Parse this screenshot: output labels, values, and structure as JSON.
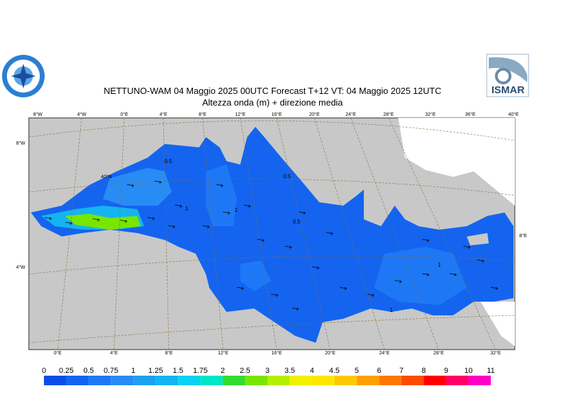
{
  "header": {
    "title": "NETTUNO-WAM  04   Maggio  2025 00UTC Forecast T+12 VT: 04   Maggio  2025 12UTC",
    "subtitle": "Altezza onda (m) + direzione media",
    "logo_text": "ISMAR"
  },
  "map": {
    "top_labels": [
      "8°W",
      "4°W",
      "0°E",
      "4°E",
      "8°E",
      "12°E",
      "16°E",
      "20°E",
      "24°E",
      "28°E",
      "32°E",
      "36°E",
      "40°E"
    ],
    "bottom_labels": [
      "0°E",
      "4°E",
      "8°E",
      "12°E",
      "16°E",
      "20°E",
      "24°E",
      "28°E",
      "32°E"
    ],
    "left_labels": [
      "8°W",
      "40°N",
      "4°W"
    ],
    "right_labels": [
      "8°E"
    ],
    "contour_labels": [
      "0.5",
      "0.5",
      "0.5",
      "1",
      "1",
      "1",
      "1"
    ]
  },
  "colorbar": {
    "labels": [
      0,
      0.25,
      0.5,
      0.75,
      1,
      1.25,
      1.5,
      1.75,
      2,
      2.5,
      3,
      3.5,
      4,
      4.5,
      5,
      6,
      7,
      8,
      9,
      10,
      11
    ],
    "colors": [
      "#0a4ee8",
      "#1464f0",
      "#1e78f5",
      "#288cf5",
      "#1ea0f0",
      "#14b4f0",
      "#0ad2f0",
      "#00e6c8",
      "#32dc32",
      "#78e600",
      "#b4f000",
      "#f0f000",
      "#ffe600",
      "#ffc800",
      "#ffa000",
      "#ff7800",
      "#ff4b00",
      "#ff0000",
      "#ff0064",
      "#ff00c8"
    ]
  }
}
